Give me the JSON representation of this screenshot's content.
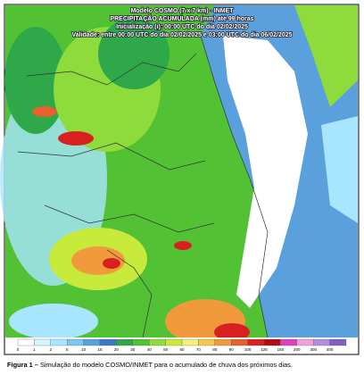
{
  "header": {
    "lines": [
      "Modelo COSMO (7 x 7 km) - INMET",
      "PRECIPITAÇÃO ACUMULADA (mm) até 99 horas",
      "Inicialização (i): 00:00 UTC do dia 02/02/2025",
      "Validade: entre 00:00 UTC do dia 02/02/2025 e 03:00 UTC do dia 06/02/2025"
    ]
  },
  "colorbar": {
    "ticks": [
      0,
      1,
      2,
      5,
      10,
      15,
      20,
      30,
      40,
      50,
      60,
      70,
      80,
      90,
      100,
      125,
      150,
      200,
      300,
      400
    ],
    "colors": [
      "#ffffff",
      "#d6f5ff",
      "#a8e6ff",
      "#7ec8f0",
      "#5aa0dc",
      "#3c78c8",
      "#2fa84a",
      "#52c234",
      "#8edb3c",
      "#c8ea3a",
      "#f5f07a",
      "#f5c850",
      "#f09a3c",
      "#e8602e",
      "#d82020",
      "#b40a14",
      "#e040c0",
      "#f0a0e0",
      "#b090e0",
      "#8060c0"
    ]
  },
  "caption": {
    "label": "Figura 1 –",
    "text": "Simulação do modelo COSMO/INMET para o acumulado de chuva dos próximos dias."
  }
}
